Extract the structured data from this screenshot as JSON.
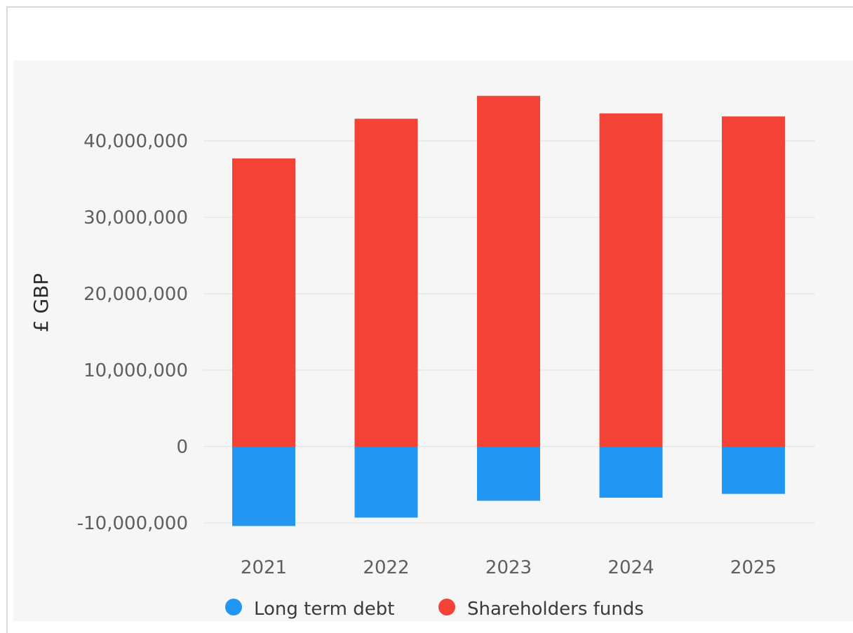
{
  "chart_data": {
    "type": "bar",
    "stacked": true,
    "categories": [
      "2021",
      "2022",
      "2023",
      "2024",
      "2025"
    ],
    "series": [
      {
        "name": "Long term debt",
        "color": "#2196f3",
        "values": [
          -10400000,
          -9300000,
          -7100000,
          -6700000,
          -6200000
        ]
      },
      {
        "name": "Shareholders funds",
        "color": "#f44336",
        "values": [
          37700000,
          42900000,
          45900000,
          43600000,
          43200000
        ]
      }
    ],
    "ylabel": "£ GBP",
    "xlabel": "",
    "ylim": [
      -10000000,
      45000000
    ],
    "yticks": [
      -10000000,
      0,
      10000000,
      20000000,
      30000000,
      40000000
    ],
    "ytick_labels": [
      "-10,000,000",
      "0",
      "10,000,000",
      "20,000,000",
      "30,000,000",
      "40,000,000"
    ],
    "grid": true,
    "legend_position": "bottom",
    "background_color": "#f6f6f6",
    "grid_color": "#ebebeb"
  }
}
